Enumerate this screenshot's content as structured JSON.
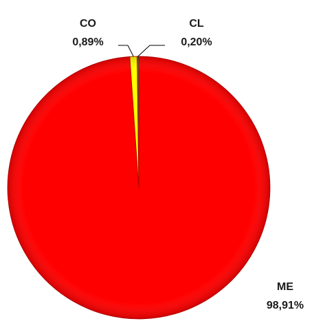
{
  "chart_data": {
    "type": "pie",
    "slices": [
      {
        "category": "ME",
        "value": 98.91,
        "label": "98,91%",
        "color": "#ff0000"
      },
      {
        "category": "CO",
        "value": 0.89,
        "label": "0,89%",
        "color": "#ffff00"
      },
      {
        "category": "CL",
        "value": 0.2,
        "label": "0,20%",
        "color": "#2e7d32"
      }
    ],
    "start": "12 o'clock",
    "direction": "clockwise",
    "legend": "none"
  }
}
